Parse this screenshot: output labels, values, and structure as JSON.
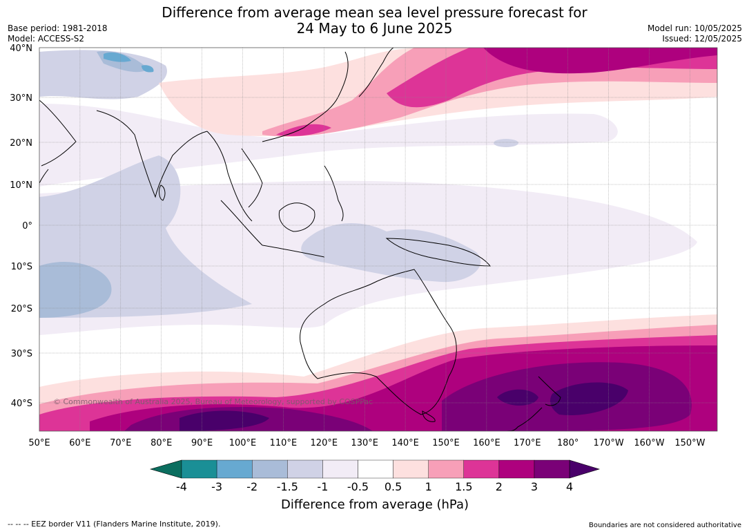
{
  "title_line1": "Difference from average mean sea level pressure forecast for",
  "title_line2": "24 May to 6 June 2025",
  "base_period": "Base period: 1981-2018",
  "model": "Model: ACCESS-S2",
  "model_run": "Model run: 10/05/2025",
  "issued": "Issued: 12/05/2025",
  "copyright": "© Commonwealth of Australia 2025, Bureau of Meteorology, supported by COSPPac",
  "eez_note": "--  --  -- EEZ border V11 (Flanders Marine Institute, 2019).",
  "boundaries_note": "Boundaries are not considered authoritative",
  "colorbar_title": "Difference from average (hPa)",
  "lat_labels": [
    "40°N",
    "30°N",
    "20°N",
    "10°N",
    "0°",
    "10°S",
    "20°S",
    "30°S",
    "40°S"
  ],
  "lon_labels": [
    "50°E",
    "60°E",
    "70°E",
    "80°E",
    "90°E",
    "100°E",
    "110°E",
    "120°E",
    "130°E",
    "140°E",
    "150°E",
    "160°E",
    "170°E",
    "180°",
    "170°W",
    "160°W",
    "150°W"
  ],
  "colorbar_ticks": [
    "-4",
    "-3",
    "-2",
    "-1.5",
    "-1",
    "-0.5",
    "0.5",
    "1",
    "1.5",
    "2",
    "3",
    "4"
  ],
  "colorbar_colors": [
    "#0b6e5f",
    "#1a8f96",
    "#67a9d1",
    "#a9bcd8",
    "#d0d2e6",
    "#f2ecf6",
    "#ffffff",
    "#fde0df",
    "#f79fb8",
    "#dd3497",
    "#ae017e",
    "#7a0177",
    "#49006a"
  ]
}
